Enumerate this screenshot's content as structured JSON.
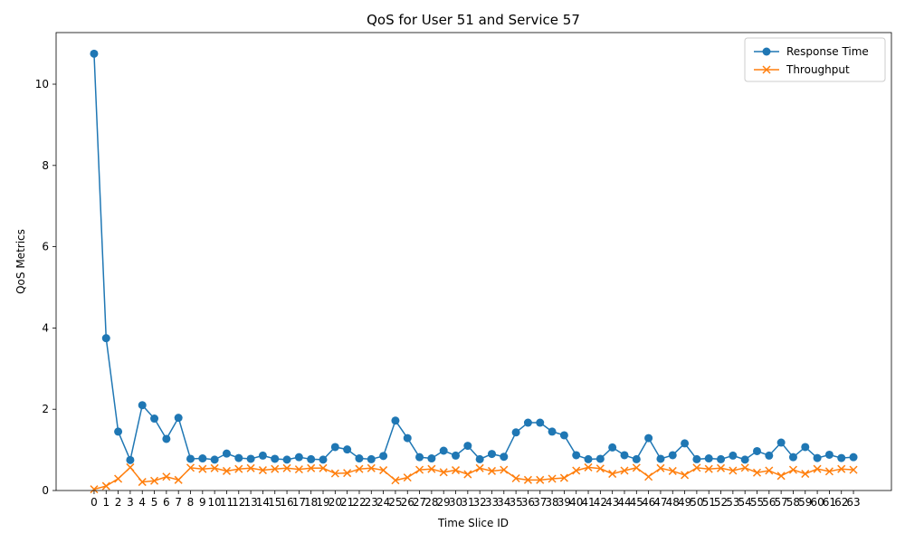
{
  "chart_data": {
    "type": "line",
    "title": "QoS for User 51 and Service 57",
    "xlabel": "Time Slice ID",
    "ylabel": "QoS Metrics",
    "x": [
      0,
      1,
      2,
      3,
      4,
      5,
      6,
      7,
      8,
      9,
      10,
      11,
      12,
      13,
      14,
      15,
      16,
      17,
      18,
      19,
      20,
      21,
      22,
      23,
      24,
      25,
      26,
      27,
      28,
      29,
      30,
      31,
      32,
      33,
      34,
      35,
      36,
      37,
      38,
      39,
      40,
      41,
      42,
      43,
      44,
      45,
      46,
      47,
      48,
      49,
      50,
      51,
      52,
      53,
      54,
      55,
      56,
      57,
      58,
      59,
      60,
      61,
      62,
      63
    ],
    "x_tick_labels": [
      "0",
      "1",
      "2",
      "3",
      "4",
      "5",
      "6",
      "7",
      "8",
      "9",
      "10",
      "11",
      "12",
      "13",
      "14",
      "15",
      "16",
      "17",
      "18",
      "19",
      "20",
      "21",
      "22",
      "23",
      "24",
      "25",
      "26",
      "27",
      "28",
      "29",
      "30",
      "31",
      "32",
      "33",
      "34",
      "35",
      "36",
      "37",
      "38",
      "39",
      "40",
      "41",
      "42",
      "43",
      "44",
      "45",
      "46",
      "47",
      "48",
      "49",
      "50",
      "51",
      "52",
      "53",
      "54",
      "55",
      "56",
      "57",
      "58",
      "59",
      "60",
      "61",
      "62",
      "63"
    ],
    "ylim": [
      0,
      11.27
    ],
    "yticks": [
      0,
      2,
      4,
      6,
      8,
      10
    ],
    "ytick_labels": [
      "0",
      "2",
      "4",
      "6",
      "8",
      "10"
    ],
    "grid": false,
    "legend_position": "top-right",
    "series": [
      {
        "name": "Response Time",
        "color": "#1f77b4",
        "marker": "circle",
        "values": [
          10.75,
          3.75,
          1.45,
          0.75,
          2.1,
          1.77,
          1.27,
          1.79,
          0.78,
          0.79,
          0.76,
          0.91,
          0.8,
          0.78,
          0.86,
          0.78,
          0.76,
          0.82,
          0.77,
          0.76,
          1.07,
          1.01,
          0.79,
          0.77,
          0.85,
          1.72,
          1.29,
          0.82,
          0.79,
          0.98,
          0.86,
          1.1,
          0.77,
          0.9,
          0.83,
          1.43,
          1.67,
          1.67,
          1.45,
          1.36,
          0.87,
          0.77,
          0.78,
          1.06,
          0.87,
          0.77,
          1.29,
          0.78,
          0.87,
          1.16,
          0.77,
          0.79,
          0.77,
          0.86,
          0.76,
          0.97,
          0.86,
          1.18,
          0.82,
          1.07,
          0.8,
          0.88,
          0.8,
          0.82
        ]
      },
      {
        "name": "Throughput",
        "color": "#ff7f0e",
        "marker": "x",
        "values": [
          0.03,
          0.11,
          0.29,
          0.57,
          0.21,
          0.24,
          0.34,
          0.26,
          0.56,
          0.53,
          0.55,
          0.48,
          0.53,
          0.55,
          0.5,
          0.53,
          0.55,
          0.52,
          0.55,
          0.55,
          0.42,
          0.43,
          0.53,
          0.55,
          0.5,
          0.25,
          0.32,
          0.51,
          0.53,
          0.45,
          0.5,
          0.4,
          0.55,
          0.48,
          0.51,
          0.3,
          0.26,
          0.26,
          0.29,
          0.31,
          0.49,
          0.57,
          0.54,
          0.41,
          0.49,
          0.56,
          0.34,
          0.55,
          0.48,
          0.38,
          0.56,
          0.53,
          0.55,
          0.49,
          0.56,
          0.44,
          0.49,
          0.36,
          0.51,
          0.41,
          0.53,
          0.47,
          0.53,
          0.51
        ]
      }
    ]
  }
}
